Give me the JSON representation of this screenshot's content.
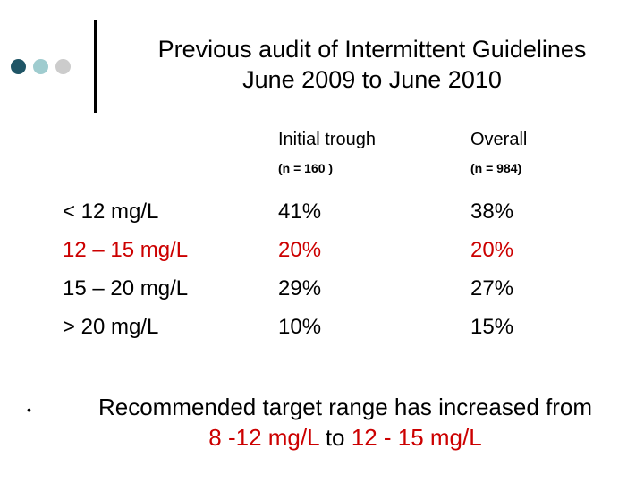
{
  "title": {
    "line1": "Previous audit of Intermittent Guidelines",
    "line2": "June 2009 to June 2010"
  },
  "colors": {
    "dot1": "#1f5566",
    "dot2": "#9fcccf",
    "dot3": "#cccccc",
    "highlight": "#cc0000"
  },
  "table": {
    "headers": [
      {
        "label": "Initial trough",
        "sub": "(n = 160 )"
      },
      {
        "label": "Overall",
        "sub": "(n = 984)"
      }
    ],
    "rows": [
      {
        "range": "< 12 mg/L",
        "initial": "41%",
        "overall": "38%",
        "red": false
      },
      {
        "range": "12 – 15 mg/L",
        "initial": "20%",
        "overall": "20%",
        "red": true
      },
      {
        "range": "15 – 20 mg/L",
        "initial": "29%",
        "overall": "27%",
        "red": false
      },
      {
        "range": "> 20 mg/L",
        "initial": "10%",
        "overall": "15%",
        "red": false
      }
    ]
  },
  "note": {
    "bullet": "•",
    "line1": "Recommended target range has increased from",
    "from": "8 -12 mg/L",
    "connector": " to ",
    "to": "12 - 15 mg/L"
  }
}
